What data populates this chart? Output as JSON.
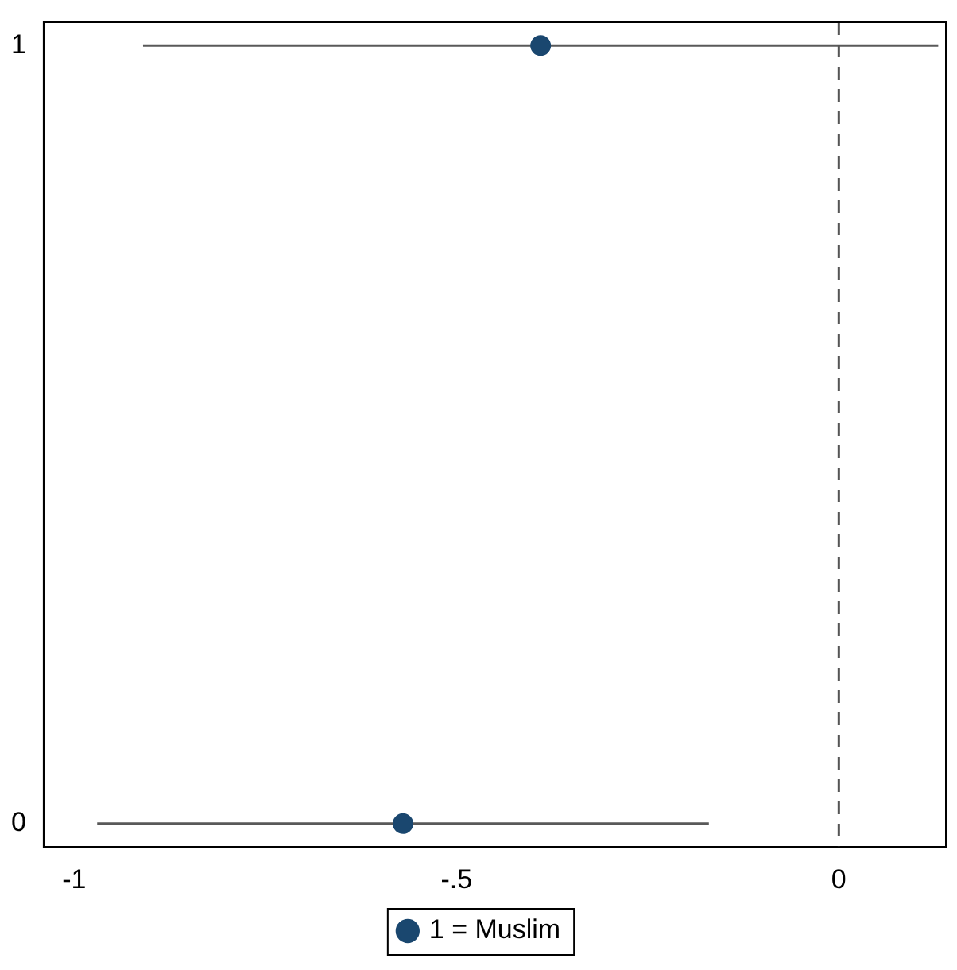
{
  "chart_data": {
    "type": "scatter",
    "series": [
      {
        "name": "1 = Muslim",
        "color": "#1a476f",
        "x": [
          -0.57,
          -0.39
        ],
        "values": [
          0,
          1
        ],
        "xerrors": [
          [
            -0.97,
            -0.17
          ],
          [
            -0.91,
            0.13
          ]
        ]
      }
    ],
    "xlim": [
      -1.04,
      0.14
    ],
    "xticks": [
      {
        "value": -1,
        "label": "-1"
      },
      {
        "value": -0.5,
        "label": "-.5"
      },
      {
        "value": 0,
        "label": "0"
      }
    ],
    "ylim": [
      -0.03,
      1.03
    ],
    "yticks": [
      0,
      1
    ],
    "ref_lines": [
      {
        "axis": "x",
        "value": 0,
        "label": null,
        "color": "#555555",
        "line_style": "dashed"
      }
    ],
    "grid": false,
    "legend": "bottom",
    "marker": "circle"
  }
}
